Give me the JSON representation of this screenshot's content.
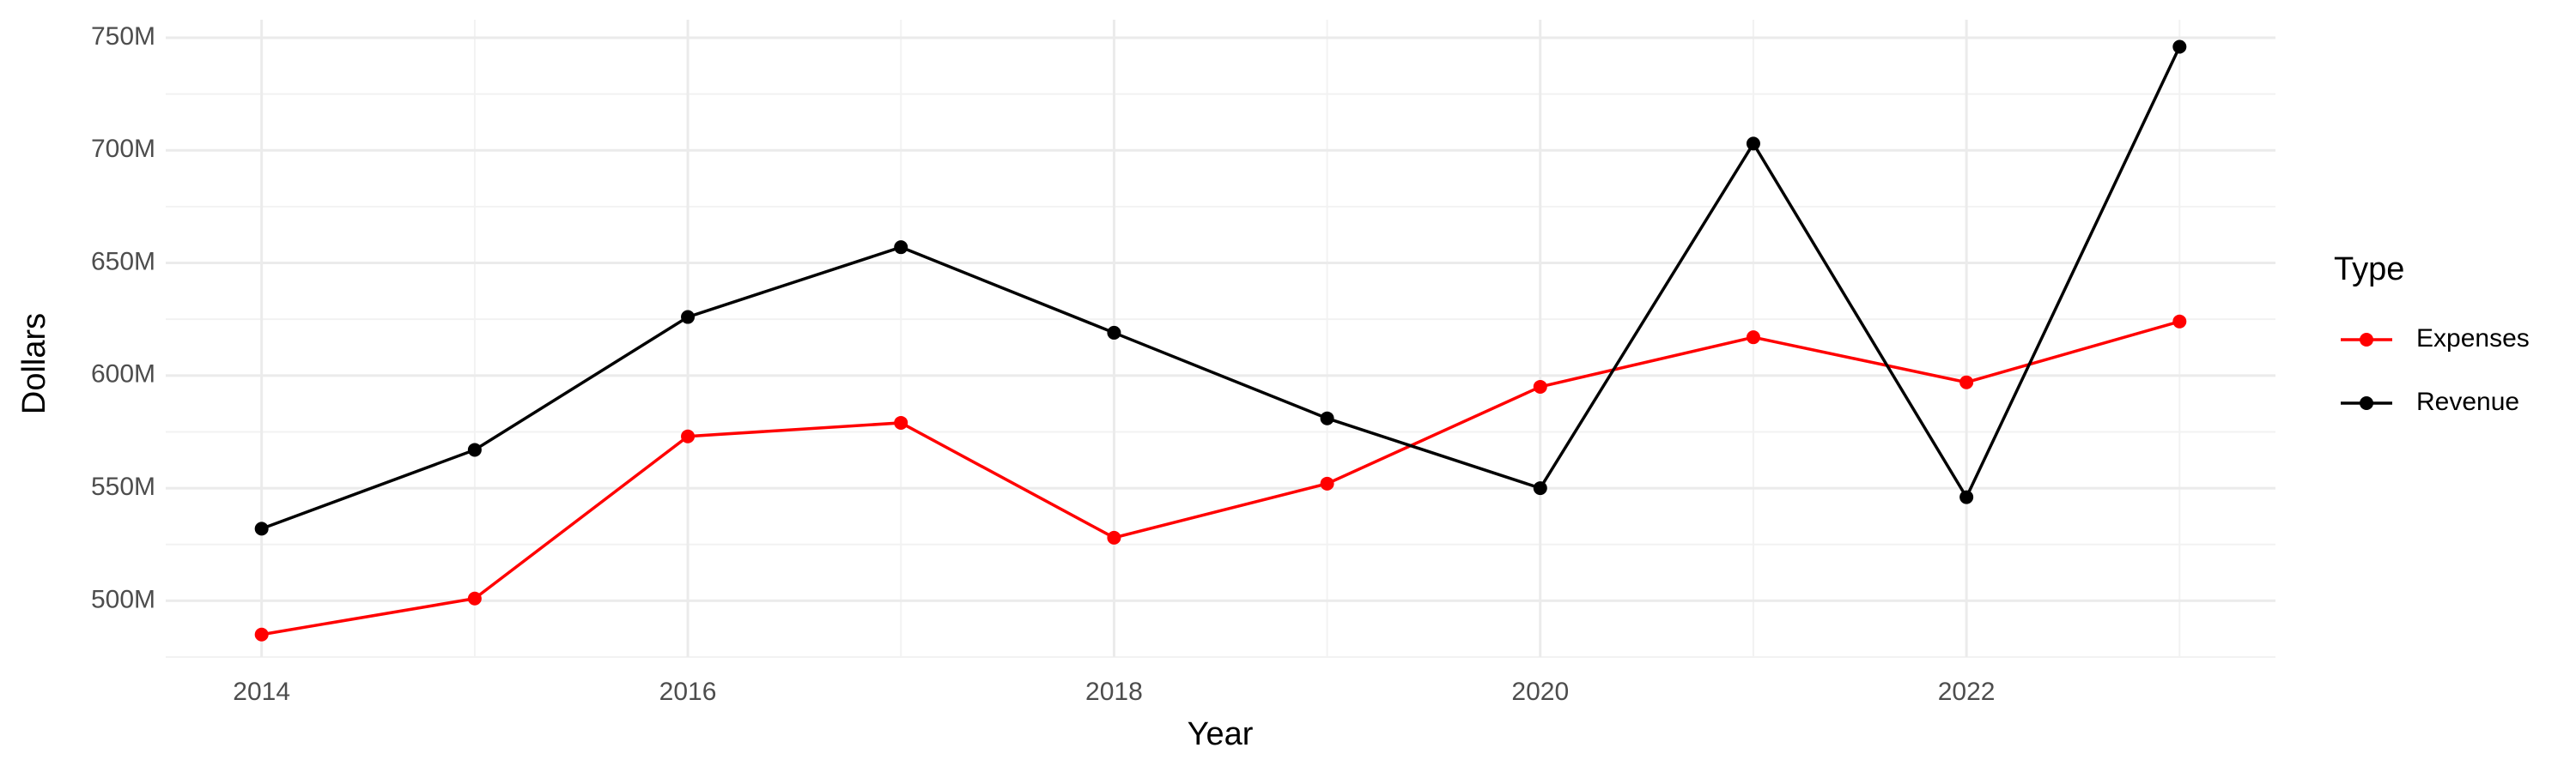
{
  "chart_data": {
    "type": "line",
    "x_label": "Year",
    "y_label": "Dollars",
    "legend_title": "Type",
    "legend_position": "right",
    "x": [
      2014,
      2015,
      2016,
      2017,
      2018,
      2019,
      2020,
      2021,
      2022,
      2023
    ],
    "series": [
      {
        "name": "Expenses",
        "color": "#ff0000",
        "values": [
          485000000,
          501000000,
          573000000,
          579000000,
          528000000,
          552000000,
          595000000,
          617000000,
          597000000,
          624000000
        ]
      },
      {
        "name": "Revenue",
        "color": "#000000",
        "values": [
          532000000,
          567000000,
          626000000,
          657000000,
          619000000,
          581000000,
          550000000,
          703000000,
          546000000,
          746000000
        ]
      }
    ],
    "xlim": [
      2013.55,
      2023.45
    ],
    "ylim": [
      475000000,
      758000000
    ],
    "xticks": [
      2014,
      2016,
      2018,
      2020,
      2022
    ],
    "yticks": [
      {
        "value": 500000000,
        "label": "500M"
      },
      {
        "value": 550000000,
        "label": "550M"
      },
      {
        "value": 600000000,
        "label": "600M"
      },
      {
        "value": 650000000,
        "label": "650M"
      },
      {
        "value": 700000000,
        "label": "700M"
      },
      {
        "value": 750000000,
        "label": "750M"
      }
    ],
    "grid": true
  }
}
